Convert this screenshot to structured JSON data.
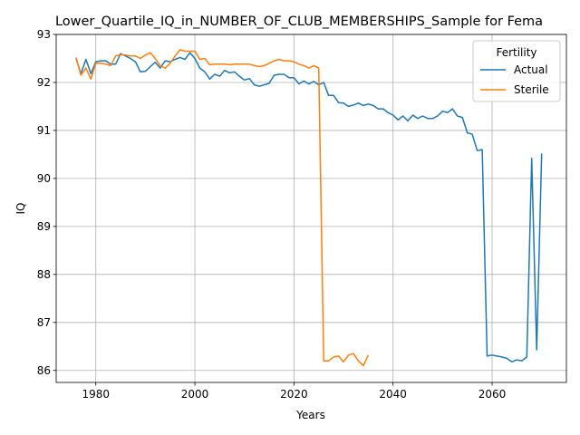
{
  "chart_data": {
    "type": "line",
    "title": "Lower_Quartile_IQ_in_NUMBER_OF_CLUB_MEMBERSHIPS_Sample for Fema",
    "xlabel": "Years",
    "ylabel": "IQ",
    "xlim": [
      1972,
      2075
    ],
    "ylim": [
      85.75,
      93.0
    ],
    "xticks": [
      1980,
      2000,
      2020,
      2040,
      2060
    ],
    "yticks": [
      86,
      87,
      88,
      89,
      90,
      91,
      92,
      93
    ],
    "grid": true,
    "legend": {
      "title": "Fertility",
      "placement": "top-right"
    },
    "colors": {
      "Actual": "#1f77b4",
      "Sterile": "#ff7f0e"
    },
    "series": [
      {
        "name": "Actual",
        "x": [
          1976,
          1977,
          1978,
          1979,
          1980,
          1981,
          1982,
          1983,
          1984,
          1985,
          1986,
          1987,
          1988,
          1989,
          1990,
          1991,
          1992,
          1993,
          1994,
          1995,
          1996,
          1997,
          1998,
          1999,
          2000,
          2001,
          2002,
          2003,
          2004,
          2005,
          2006,
          2007,
          2008,
          2009,
          2010,
          2011,
          2012,
          2013,
          2014,
          2015,
          2016,
          2017,
          2018,
          2019,
          2020,
          2021,
          2022,
          2023,
          2024,
          2025,
          2026,
          2027,
          2028,
          2029,
          2030,
          2031,
          2032,
          2033,
          2034,
          2035,
          2036,
          2037,
          2038,
          2039,
          2040,
          2041,
          2042,
          2043,
          2044,
          2045,
          2046,
          2047,
          2048,
          2049,
          2050,
          2051,
          2052,
          2053,
          2054,
          2055,
          2056,
          2057,
          2058,
          2059,
          2060,
          2061,
          2062,
          2063,
          2064,
          2065,
          2066,
          2067,
          2068,
          2069,
          2070
        ],
        "values": [
          92.5,
          92.18,
          92.48,
          92.18,
          92.43,
          92.45,
          92.45,
          92.38,
          92.38,
          92.6,
          92.55,
          92.5,
          92.43,
          92.22,
          92.23,
          92.33,
          92.42,
          92.3,
          92.45,
          92.43,
          92.48,
          92.52,
          92.48,
          92.62,
          92.5,
          92.3,
          92.22,
          92.07,
          92.17,
          92.13,
          92.25,
          92.2,
          92.22,
          92.13,
          92.05,
          92.08,
          91.95,
          91.92,
          91.95,
          91.98,
          92.15,
          92.17,
          92.17,
          92.1,
          92.1,
          91.97,
          92.03,
          91.97,
          92.02,
          91.95,
          92.0,
          91.73,
          91.73,
          91.58,
          91.57,
          91.5,
          91.53,
          91.57,
          91.52,
          91.55,
          91.52,
          91.45,
          91.45,
          91.37,
          91.32,
          91.22,
          91.3,
          91.2,
          91.32,
          91.25,
          91.3,
          91.25,
          91.25,
          91.3,
          91.4,
          91.37,
          91.45,
          91.3,
          91.27,
          90.95,
          90.92,
          90.58,
          90.6,
          86.3,
          86.32,
          86.3,
          86.28,
          86.25,
          86.18,
          86.22,
          86.2,
          86.28,
          90.42,
          86.43,
          90.52
        ]
      },
      {
        "name": "Sterile",
        "x": [
          1976,
          1977,
          1978,
          1979,
          1980,
          1981,
          1982,
          1983,
          1984,
          1985,
          1986,
          1987,
          1988,
          1989,
          1990,
          1991,
          1992,
          1993,
          1994,
          1995,
          1996,
          1997,
          1998,
          1999,
          2000,
          2001,
          2002,
          2003,
          2004,
          2005,
          2006,
          2007,
          2008,
          2009,
          2010,
          2011,
          2012,
          2013,
          2014,
          2015,
          2016,
          2017,
          2018,
          2019,
          2020,
          2021,
          2022,
          2023,
          2024,
          2025,
          2026,
          2027,
          2028,
          2029,
          2030,
          2031,
          2032,
          2033,
          2034,
          2035
        ],
        "values": [
          92.52,
          92.15,
          92.3,
          92.07,
          92.4,
          92.4,
          92.38,
          92.35,
          92.55,
          92.58,
          92.57,
          92.55,
          92.55,
          92.5,
          92.57,
          92.62,
          92.5,
          92.35,
          92.3,
          92.4,
          92.55,
          92.68,
          92.65,
          92.65,
          92.65,
          92.48,
          92.5,
          92.37,
          92.38,
          92.38,
          92.38,
          92.37,
          92.38,
          92.38,
          92.38,
          92.38,
          92.35,
          92.33,
          92.35,
          92.4,
          92.45,
          92.48,
          92.45,
          92.45,
          92.43,
          92.38,
          92.35,
          92.3,
          92.35,
          92.3,
          86.2,
          86.2,
          86.28,
          86.3,
          86.18,
          86.32,
          86.35,
          86.2,
          86.1,
          86.32
        ]
      }
    ]
  }
}
